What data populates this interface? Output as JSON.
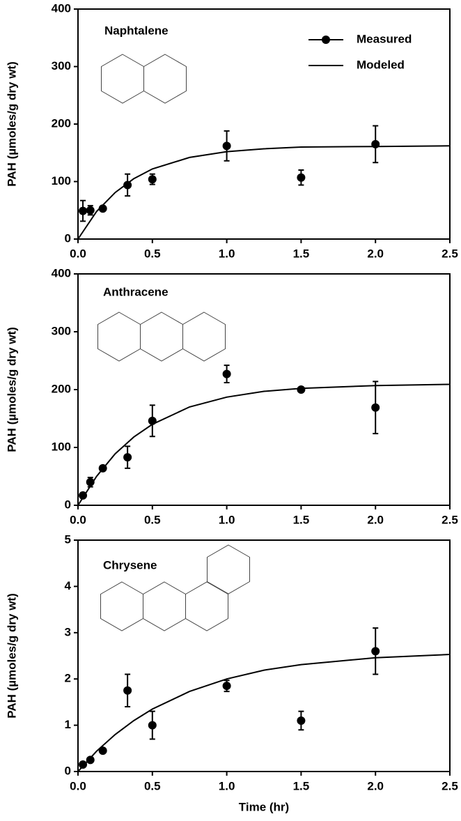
{
  "chart_data": [
    {
      "type": "scatter",
      "annotation": "Naphtalene",
      "ylabel": "PAH (µmoles/g dry wt)",
      "xlim": [
        0,
        2.5
      ],
      "xticks": [
        {
          "value": 0,
          "label": "0.0"
        },
        0.5,
        {
          "value": 1,
          "label": "1.0"
        },
        1.5,
        {
          "value": 2,
          "label": "2.0"
        },
        2.5
      ],
      "ylim": [
        0,
        400
      ],
      "yticks": [
        0,
        100,
        200,
        300,
        400
      ],
      "legend": "upper right",
      "series": [
        {
          "name": "Measured",
          "type": "scatter",
          "color": "#000000",
          "x": [
            0.033,
            0.083,
            0.167,
            0.333,
            0.5,
            1.0,
            1.5,
            2.0
          ],
          "values": [
            49,
            50,
            53,
            94,
            104,
            162,
            107,
            165
          ],
          "errors": [
            18,
            8,
            null,
            19,
            9,
            26,
            13,
            32
          ]
        },
        {
          "name": "Modeled",
          "type": "line",
          "color": "#000000",
          "x": [
            0,
            0.125,
            0.25,
            0.375,
            0.5,
            0.75,
            1,
            1.25,
            1.5,
            2,
            2.5
          ],
          "values": [
            0,
            48,
            81,
            105,
            122,
            142,
            152,
            157,
            160,
            161,
            162
          ]
        }
      ]
    },
    {
      "type": "scatter",
      "annotation": "Anthracene",
      "ylabel": "PAH (µmoles/g dry wt)",
      "xlim": [
        0,
        2.5
      ],
      "xticks": [
        {
          "value": 0,
          "label": "0.0"
        },
        0.5,
        {
          "value": 1,
          "label": "1.0"
        },
        1.5,
        {
          "value": 2,
          "label": "2.0"
        },
        2.5
      ],
      "ylim": [
        0,
        400
      ],
      "yticks": [
        0,
        100,
        200,
        300,
        400
      ],
      "series": [
        {
          "type": "scatter",
          "color": "#000000",
          "x": [
            0.033,
            0.083,
            0.167,
            0.333,
            0.5,
            1.0,
            1.5,
            2.0
          ],
          "values": [
            17,
            40,
            64,
            83,
            146,
            227,
            200,
            169
          ],
          "errors": [
            null,
            8,
            null,
            19,
            27,
            15,
            null,
            45
          ]
        },
        {
          "type": "line",
          "color": "#000000",
          "x": [
            0,
            0.125,
            0.25,
            0.375,
            0.5,
            0.75,
            1,
            1.25,
            1.5,
            2,
            2.5
          ],
          "values": [
            0,
            50,
            89,
            118,
            140,
            170,
            187,
            197,
            202,
            207,
            209
          ]
        }
      ]
    },
    {
      "type": "scatter",
      "annotation": "Chrysene",
      "ylabel": "PAH (µmoles/g dry wt)",
      "xlabel": "Time (hr)",
      "xlim": [
        0,
        2.5
      ],
      "xticks": [
        {
          "value": 0,
          "label": "0.0"
        },
        0.5,
        {
          "value": 1,
          "label": "1.0"
        },
        1.5,
        {
          "value": 2,
          "label": "2.0"
        },
        2.5
      ],
      "ylim": [
        0,
        5
      ],
      "yticks": [
        0,
        1,
        2,
        3,
        4,
        5
      ],
      "series": [
        {
          "type": "scatter",
          "color": "#000000",
          "x": [
            0.033,
            0.083,
            0.167,
            0.333,
            0.5,
            1.0,
            1.5,
            2.0
          ],
          "values": [
            0.15,
            0.25,
            0.45,
            1.75,
            1.0,
            1.85,
            1.1,
            2.6
          ],
          "errors": [
            null,
            null,
            null,
            0.35,
            0.3,
            0.12,
            0.2,
            0.5
          ]
        },
        {
          "type": "line",
          "color": "#000000",
          "x": [
            0,
            0.125,
            0.25,
            0.375,
            0.5,
            0.75,
            1,
            1.25,
            1.5,
            2,
            2.5
          ],
          "values": [
            0,
            0.44,
            0.8,
            1.1,
            1.35,
            1.73,
            2.0,
            2.19,
            2.31,
            2.46,
            2.53
          ]
        }
      ]
    }
  ]
}
